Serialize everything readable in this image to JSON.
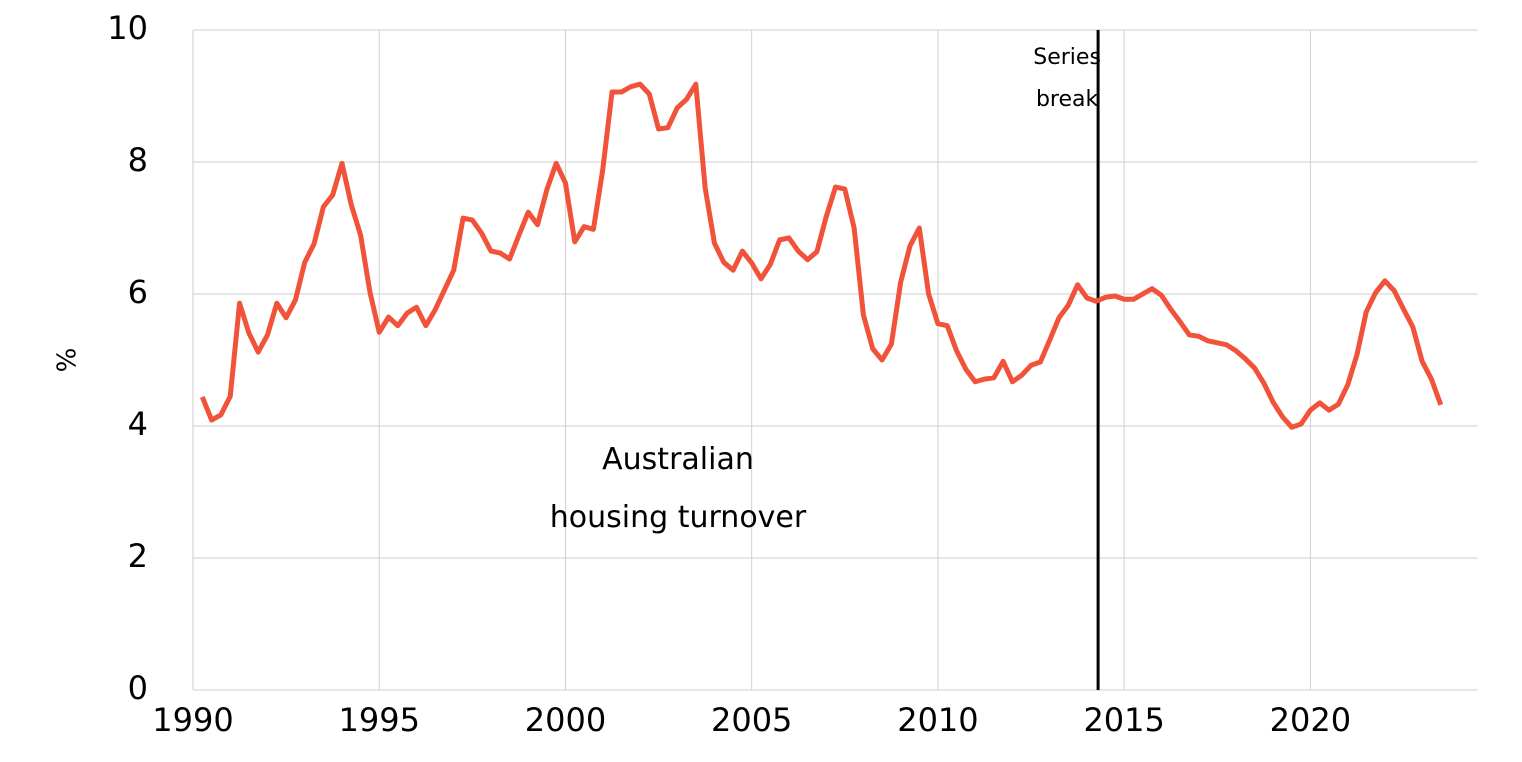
{
  "chart_data": {
    "type": "line",
    "ylabel": "%",
    "x": [
      1990.25,
      1990.5,
      1990.75,
      1991,
      1991.25,
      1991.5,
      1991.75,
      1992,
      1992.25,
      1992.5,
      1992.75,
      1993,
      1993.25,
      1993.5,
      1993.75,
      1994,
      1994.25,
      1994.5,
      1994.75,
      1995,
      1995.25,
      1995.5,
      1995.75,
      1996,
      1996.25,
      1996.5,
      1996.75,
      1997,
      1997.25,
      1997.5,
      1997.75,
      1998,
      1998.25,
      1998.5,
      1998.75,
      1999,
      1999.25,
      1999.5,
      1999.75,
      2000,
      2000.25,
      2000.5,
      2000.75,
      2001,
      2001.25,
      2001.5,
      2001.75,
      2002,
      2002.25,
      2002.5,
      2002.75,
      2003,
      2003.25,
      2003.5,
      2003.75,
      2004,
      2004.25,
      2004.5,
      2004.75,
      2005,
      2005.25,
      2005.5,
      2005.75,
      2006,
      2006.25,
      2006.5,
      2006.75,
      2007,
      2007.25,
      2007.5,
      2007.75,
      2008,
      2008.25,
      2008.5,
      2008.75,
      2009,
      2009.25,
      2009.5,
      2009.75,
      2010,
      2010.25,
      2010.5,
      2010.75,
      2011,
      2011.25,
      2011.5,
      2011.75,
      2012,
      2012.25,
      2012.5,
      2012.75,
      2013,
      2013.25,
      2013.5,
      2013.75,
      2014,
      2014.25,
      2014.5,
      2014.75,
      2015,
      2015.25,
      2015.5,
      2015.75,
      2016,
      2016.25,
      2016.5,
      2016.75,
      2017,
      2017.25,
      2017.5,
      2017.75,
      2018,
      2018.25,
      2018.5,
      2018.75,
      2019,
      2019.25,
      2019.5,
      2019.75,
      2020,
      2020.25,
      2020.5,
      2020.75,
      2021,
      2021.25,
      2021.5,
      2021.75,
      2022,
      2022.25,
      2022.5,
      2022.75,
      2023,
      2023.25,
      2023.5
    ],
    "series": [
      {
        "name": "Australian housing turnover",
        "color": "#f0533a",
        "values": [
          4.44,
          4.09,
          4.17,
          4.45,
          5.86,
          5.41,
          5.12,
          5.38,
          5.86,
          5.64,
          5.91,
          6.48,
          6.76,
          7.32,
          7.5,
          7.98,
          7.35,
          6.89,
          6.03,
          5.42,
          5.65,
          5.52,
          5.71,
          5.8,
          5.52,
          5.76,
          6.06,
          6.36,
          7.15,
          7.12,
          6.92,
          6.65,
          6.62,
          6.53,
          6.89,
          7.24,
          7.05,
          7.58,
          7.98,
          7.68,
          6.79,
          7.02,
          6.98,
          7.88,
          9.06,
          9.06,
          9.14,
          9.18,
          9.03,
          8.5,
          8.52,
          8.82,
          8.95,
          9.18,
          7.61,
          6.77,
          6.48,
          6.36,
          6.65,
          6.47,
          6.23,
          6.45,
          6.82,
          6.85,
          6.65,
          6.52,
          6.64,
          7.17,
          7.62,
          7.59,
          7.0,
          5.68,
          5.17,
          5.0,
          5.24,
          6.18,
          6.73,
          7.0,
          6.0,
          5.55,
          5.52,
          5.14,
          4.86,
          4.67,
          4.71,
          4.73,
          4.98,
          4.67,
          4.77,
          4.92,
          4.97,
          5.3,
          5.64,
          5.83,
          6.14,
          5.94,
          5.89,
          5.95,
          5.97,
          5.92,
          5.92,
          6.0,
          6.08,
          5.98,
          5.77,
          5.58,
          5.38,
          5.36,
          5.29,
          5.26,
          5.23,
          5.14,
          5.02,
          4.88,
          4.65,
          4.36,
          4.14,
          3.98,
          4.03,
          4.24,
          4.35,
          4.24,
          4.33,
          4.62,
          5.08,
          5.73,
          6.02,
          6.2,
          6.05,
          5.77,
          5.5,
          4.98,
          4.71,
          4.32
        ]
      }
    ],
    "annotations": [
      {
        "text": [
          "Series",
          "break"
        ],
        "x": 2014.3,
        "color": "#000000"
      }
    ],
    "xlim": [
      1990,
      2024.5
    ],
    "xticks": [
      1990,
      1995,
      2000,
      2005,
      2010,
      2015,
      2020
    ],
    "ylim": [
      0,
      10
    ],
    "yticks": [
      0,
      2,
      4,
      6,
      8,
      10
    ],
    "grid": true
  }
}
